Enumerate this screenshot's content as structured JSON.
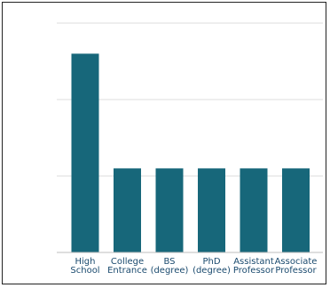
{
  "chart_data": {
    "type": "bar",
    "title": "",
    "xlabel": "",
    "ylabel": "",
    "categories": [
      [
        "High",
        "School"
      ],
      [
        "College",
        "Entrance"
      ],
      [
        "BS",
        "(degree)"
      ],
      [
        "PhD",
        "(degree)"
      ],
      [
        "Assistant",
        "Professor"
      ],
      [
        "Associate",
        "Professor"
      ]
    ],
    "values": [
      2.6,
      1.1,
      1.1,
      1.1,
      1.1,
      1.1
    ],
    "ylim": [
      0,
      3
    ],
    "grid": true,
    "legend": "none",
    "bar_color": "#17677a",
    "label_color": "#1a4a6e",
    "grid_color": "#dcdcdc"
  }
}
